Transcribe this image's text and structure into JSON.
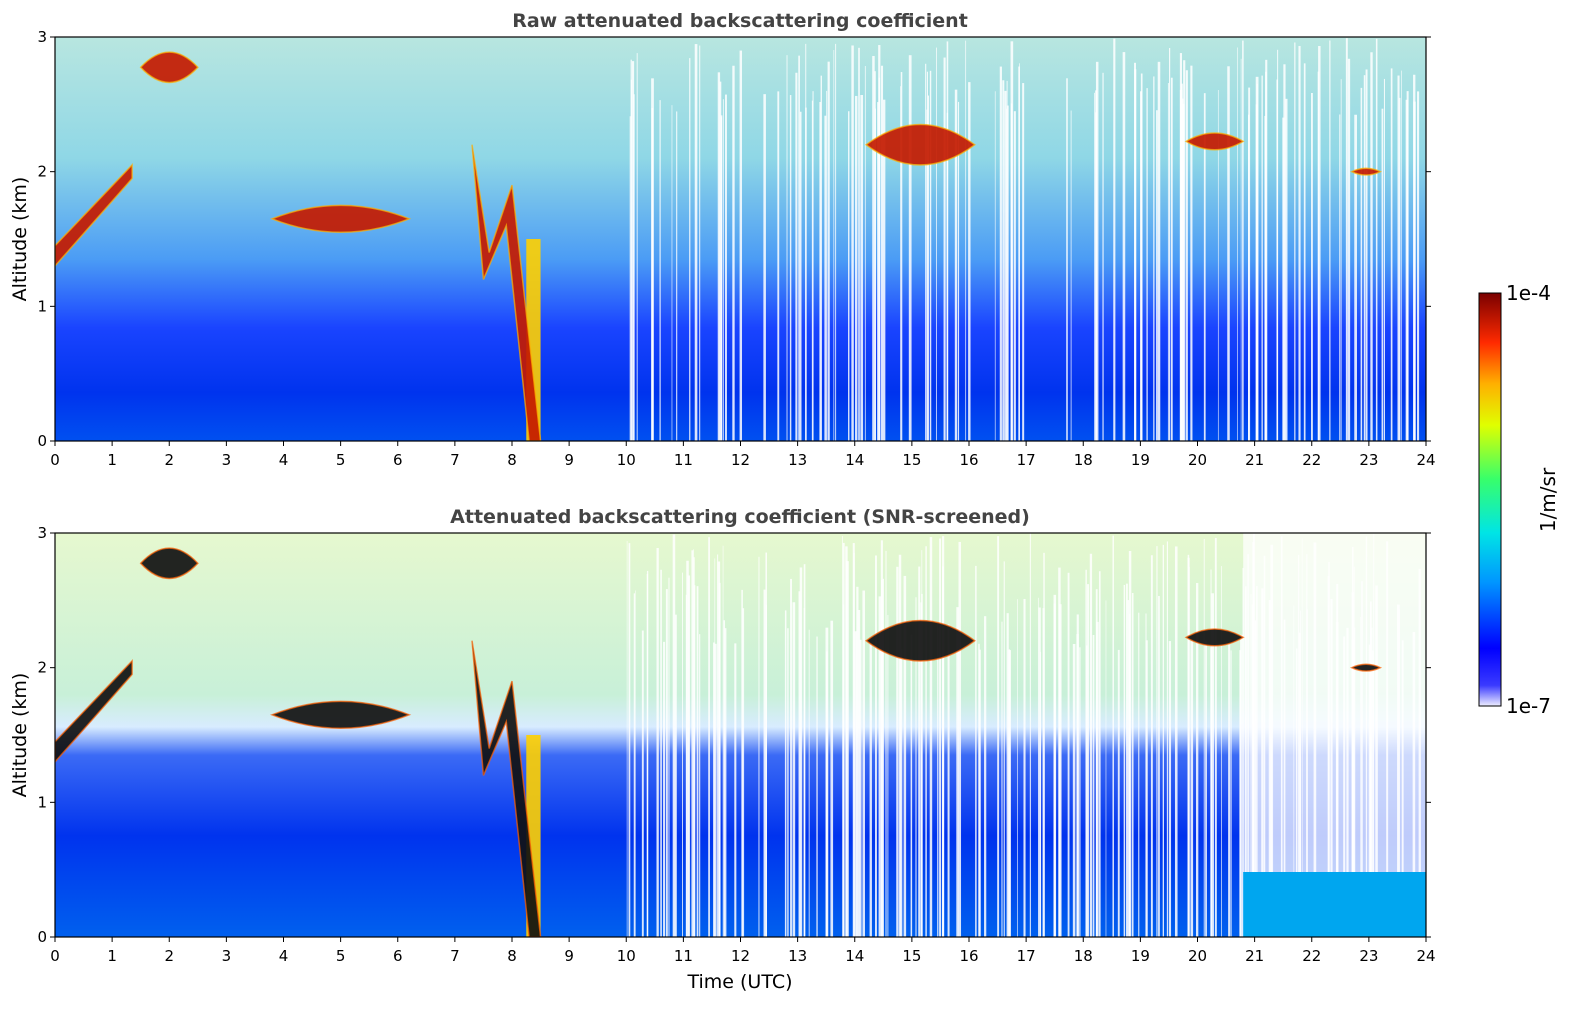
{
  "chart_data": [
    {
      "type": "heatmap",
      "title": "Raw attenuated backscattering coefficient",
      "xlabel": "",
      "ylabel": "Altitude (km)",
      "xlim": [
        0,
        24
      ],
      "ylim": [
        0,
        3
      ],
      "xticks": [
        "0",
        "1",
        "2",
        "3",
        "4",
        "5",
        "6",
        "7",
        "8",
        "9",
        "10",
        "11",
        "12",
        "13",
        "14",
        "15",
        "16",
        "17",
        "18",
        "19",
        "20",
        "21",
        "22",
        "23",
        "24"
      ],
      "yticks": [
        "0",
        "1",
        "2",
        "3"
      ],
      "features": [
        {
          "kind": "cloud layer",
          "time": [
            0.0,
            1.35
          ],
          "altitude": [
            1.3,
            2.05
          ]
        },
        {
          "kind": "cloud layer",
          "time": [
            1.5,
            2.5
          ],
          "altitude": [
            2.55,
            3.0
          ]
        },
        {
          "kind": "cloud layer",
          "time": [
            3.8,
            6.2
          ],
          "altitude": [
            1.45,
            1.85
          ]
        },
        {
          "kind": "cloud layer",
          "time": [
            7.3,
            8.5
          ],
          "altitude": [
            0.0,
            2.2
          ]
        },
        {
          "kind": "cloud layer",
          "time": [
            14.2,
            16.1
          ],
          "altitude": [
            1.9,
            2.5
          ]
        },
        {
          "kind": "cloud layer",
          "time": [
            19.8,
            20.8
          ],
          "altitude": [
            2.1,
            2.35
          ]
        },
        {
          "kind": "cloud layer",
          "time": [
            22.7,
            23.2
          ],
          "altitude": [
            1.95,
            2.05
          ]
        }
      ]
    },
    {
      "type": "heatmap",
      "title": "Attenuated backscattering coefficient (SNR-screened)",
      "xlabel": "Time (UTC)",
      "ylabel": "Altitude (km)",
      "xlim": [
        0,
        24
      ],
      "ylim": [
        0,
        3
      ],
      "xticks": [
        "0",
        "1",
        "2",
        "3",
        "4",
        "5",
        "6",
        "7",
        "8",
        "9",
        "10",
        "11",
        "12",
        "13",
        "14",
        "15",
        "16",
        "17",
        "18",
        "19",
        "20",
        "21",
        "22",
        "23",
        "24"
      ],
      "yticks": [
        "0",
        "1",
        "2",
        "3"
      ]
    }
  ],
  "colorbar": {
    "label": "1/m/sr",
    "max_label": "1e-4",
    "min_label": "1e-7",
    "scale": "log",
    "colormap": [
      "#ffffff",
      "#0000ff",
      "#00bfff",
      "#00ffbf",
      "#ffff00",
      "#ff8000",
      "#ff0000",
      "#800000"
    ]
  }
}
